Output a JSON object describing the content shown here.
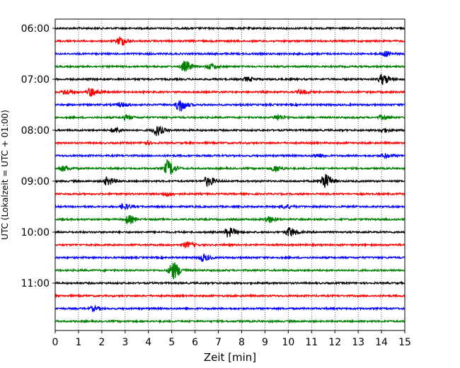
{
  "chart_data": {
    "type": "line",
    "xlabel": "Zeit  [min]",
    "ylabel": "UTC (Lokalzeit = UTC + 01:00)",
    "xlim": [
      0,
      15
    ],
    "x_ticks": [
      0,
      1,
      2,
      3,
      4,
      5,
      6,
      7,
      8,
      9,
      10,
      11,
      12,
      13,
      14,
      15
    ],
    "y_ticks": [
      "06:00",
      "07:00",
      "08:00",
      "09:00",
      "10:00",
      "11:00"
    ],
    "grid": "vertical dotted at each minute",
    "line_colors": [
      "#000000",
      "#ff0000",
      "#0000ff",
      "#008000"
    ],
    "traces": [
      {
        "start": "06:00",
        "color": "#000000",
        "events": []
      },
      {
        "start": "06:15",
        "color": "#ff0000",
        "events": [
          {
            "t": 2.75,
            "amp": 0.7
          }
        ]
      },
      {
        "start": "06:30",
        "color": "#0000ff",
        "events": [
          {
            "t": 14.1,
            "amp": 0.4
          }
        ]
      },
      {
        "start": "06:45",
        "color": "#008000",
        "events": [
          {
            "t": 5.5,
            "amp": 0.8
          },
          {
            "t": 6.6,
            "amp": 0.4
          }
        ]
      },
      {
        "start": "07:00",
        "color": "#000000",
        "events": [
          {
            "t": 8.2,
            "amp": 0.3
          },
          {
            "t": 14.0,
            "amp": 0.8
          }
        ]
      },
      {
        "start": "07:15",
        "color": "#ff0000",
        "events": [
          {
            "t": 0.4,
            "amp": 0.4
          },
          {
            "t": 1.5,
            "amp": 0.7
          },
          {
            "t": 10.5,
            "amp": 0.3
          }
        ]
      },
      {
        "start": "07:30",
        "color": "#0000ff",
        "events": [
          {
            "t": 5.3,
            "amp": 1.0
          },
          {
            "t": 2.8,
            "amp": 0.3
          }
        ]
      },
      {
        "start": "07:45",
        "color": "#008000",
        "events": [
          {
            "t": 3.0,
            "amp": 0.3
          },
          {
            "t": 9.5,
            "amp": 0.4
          },
          {
            "t": 14.0,
            "amp": 0.3
          }
        ]
      },
      {
        "start": "08:00",
        "color": "#000000",
        "events": [
          {
            "t": 2.5,
            "amp": 0.4
          },
          {
            "t": 4.3,
            "amp": 0.8
          },
          {
            "t": 14.0,
            "amp": 0.3
          }
        ]
      },
      {
        "start": "08:15",
        "color": "#ff0000",
        "events": [
          {
            "t": 3.8,
            "amp": 0.2
          }
        ]
      },
      {
        "start": "08:30",
        "color": "#0000ff",
        "events": [
          {
            "t": 11.2,
            "amp": 0.3
          },
          {
            "t": 14.1,
            "amp": 0.3
          }
        ]
      },
      {
        "start": "08:45",
        "color": "#008000",
        "events": [
          {
            "t": 0.3,
            "amp": 0.4
          },
          {
            "t": 4.8,
            "amp": 1.2
          },
          {
            "t": 9.4,
            "amp": 0.5
          }
        ]
      },
      {
        "start": "09:00",
        "color": "#000000",
        "events": [
          {
            "t": 2.2,
            "amp": 0.6
          },
          {
            "t": 6.5,
            "amp": 0.7
          },
          {
            "t": 11.5,
            "amp": 1.2
          }
        ]
      },
      {
        "start": "09:15",
        "color": "#ff0000",
        "events": [
          {
            "t": 4.7,
            "amp": 0.3
          }
        ]
      },
      {
        "start": "09:30",
        "color": "#0000ff",
        "events": [
          {
            "t": 2.9,
            "amp": 0.4
          },
          {
            "t": 9.8,
            "amp": 0.3
          }
        ]
      },
      {
        "start": "09:45",
        "color": "#008000",
        "events": [
          {
            "t": 3.1,
            "amp": 0.6
          },
          {
            "t": 9.1,
            "amp": 0.5
          }
        ]
      },
      {
        "start": "10:00",
        "color": "#000000",
        "events": [
          {
            "t": 7.4,
            "amp": 0.7
          },
          {
            "t": 10.0,
            "amp": 0.7
          }
        ]
      },
      {
        "start": "10:15",
        "color": "#ff0000",
        "events": [
          {
            "t": 5.6,
            "amp": 0.4
          }
        ]
      },
      {
        "start": "10:30",
        "color": "#0000ff",
        "events": [
          {
            "t": 6.3,
            "amp": 0.5
          }
        ]
      },
      {
        "start": "10:45",
        "color": "#008000",
        "events": [
          {
            "t": 5.0,
            "amp": 1.4
          }
        ]
      },
      {
        "start": "11:00",
        "color": "#000000",
        "events": []
      },
      {
        "start": "11:15",
        "color": "#ff0000",
        "events": []
      },
      {
        "start": "11:30",
        "color": "#0000ff",
        "events": [
          {
            "t": 1.6,
            "amp": 0.3
          }
        ]
      },
      {
        "start": "11:45",
        "color": "#008000",
        "events": []
      }
    ]
  }
}
